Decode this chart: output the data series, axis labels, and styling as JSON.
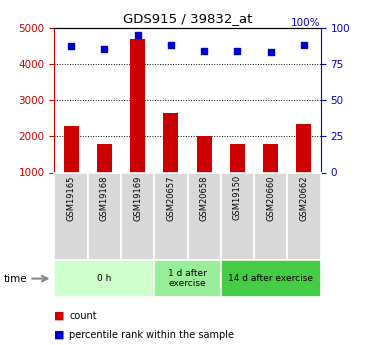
{
  "title": "GDS915 / 39832_at",
  "samples": [
    "GSM19165",
    "GSM19168",
    "GSM19169",
    "GSM20657",
    "GSM20658",
    "GSM19150",
    "GSM20660",
    "GSM20662"
  ],
  "counts": [
    2280,
    1780,
    4680,
    2630,
    2010,
    1790,
    1790,
    2350
  ],
  "percentile_ranks": [
    87,
    85,
    95,
    88,
    84,
    84,
    83,
    88
  ],
  "groups": [
    {
      "label": "0 h",
      "samples": [
        0,
        1,
        2
      ],
      "color": "#ccffcc"
    },
    {
      "label": "1 d after\nexercise",
      "samples": [
        3,
        4
      ],
      "color": "#99ee99"
    },
    {
      "label": "14 d after exercise",
      "samples": [
        5,
        6,
        7
      ],
      "color": "#44cc44"
    }
  ],
  "ylim_left": [
    1000,
    5000
  ],
  "ylim_right": [
    0,
    100
  ],
  "yticks_left": [
    1000,
    2000,
    3000,
    4000,
    5000
  ],
  "yticks_right": [
    0,
    25,
    50,
    75,
    100
  ],
  "bar_color": "#cc0000",
  "scatter_color": "#0000cc",
  "bar_width": 0.45,
  "left_axis_color": "#cc0000",
  "right_axis_color": "#0000cc",
  "grid_color": "black",
  "legend_labels": [
    "count",
    "percentile rank within the sample"
  ],
  "legend_colors": [
    "#cc0000",
    "#0000cc"
  ],
  "bg_color": "#ffffff",
  "sample_box_color": "#d8d8d8",
  "group0_color": "#ccffcc",
  "group1_color": "#99ee99",
  "group2_color": "#44cc44"
}
